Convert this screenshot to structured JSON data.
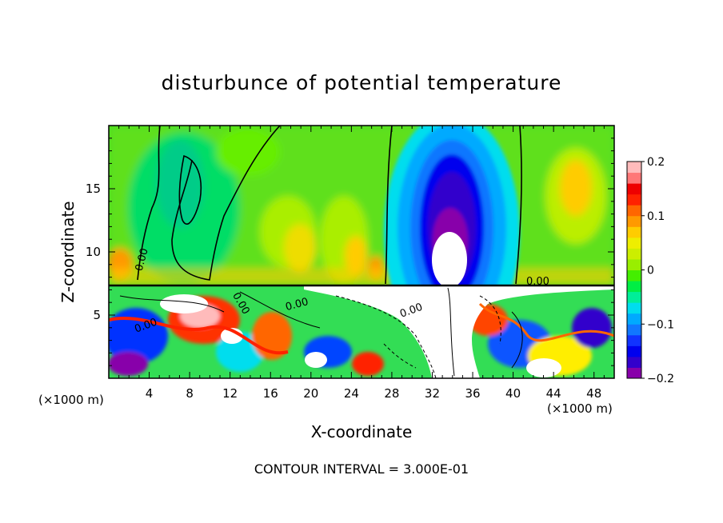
{
  "chart_data": {
    "type": "heatmap",
    "title": "disturbunce of potential temperature",
    "xlabel": "X-coordinate",
    "ylabel": "Z-coordinate",
    "x_unit_left": "(×1000 m)",
    "x_unit_right": "(×1000 m)",
    "footer": "CONTOUR INTERVAL = 3.000E-01",
    "xlim": [
      0,
      50
    ],
    "ylim": [
      0,
      20
    ],
    "x_ticks": [
      4,
      8,
      12,
      16,
      20,
      24,
      28,
      32,
      36,
      40,
      44,
      48
    ],
    "y_ticks": [
      5,
      10,
      15
    ],
    "contour_labels": [
      "0.00",
      "0.00",
      "0.00",
      "0.00",
      "0.00",
      "0.00"
    ],
    "colorbar": {
      "range": [
        -0.2,
        0.2
      ],
      "tick_values": [
        0.2,
        0.1,
        0,
        -0.1,
        -0.2
      ],
      "tick_labels": [
        "0.2",
        "0.1",
        "0",
        "−0.1",
        "−0.2"
      ],
      "colors": [
        "#8800aa",
        "#3300cc",
        "#0000ee",
        "#1133ff",
        "#1177ff",
        "#00aaff",
        "#00ddee",
        "#00ee99",
        "#00ee44",
        "#44ee00",
        "#99ee00",
        "#ccee00",
        "#eeee00",
        "#ffcc00",
        "#ff9900",
        "#ff6600",
        "#ff2200",
        "#ee0000",
        "#ff7777",
        "#ffbbbb"
      ]
    },
    "grid": false
  }
}
